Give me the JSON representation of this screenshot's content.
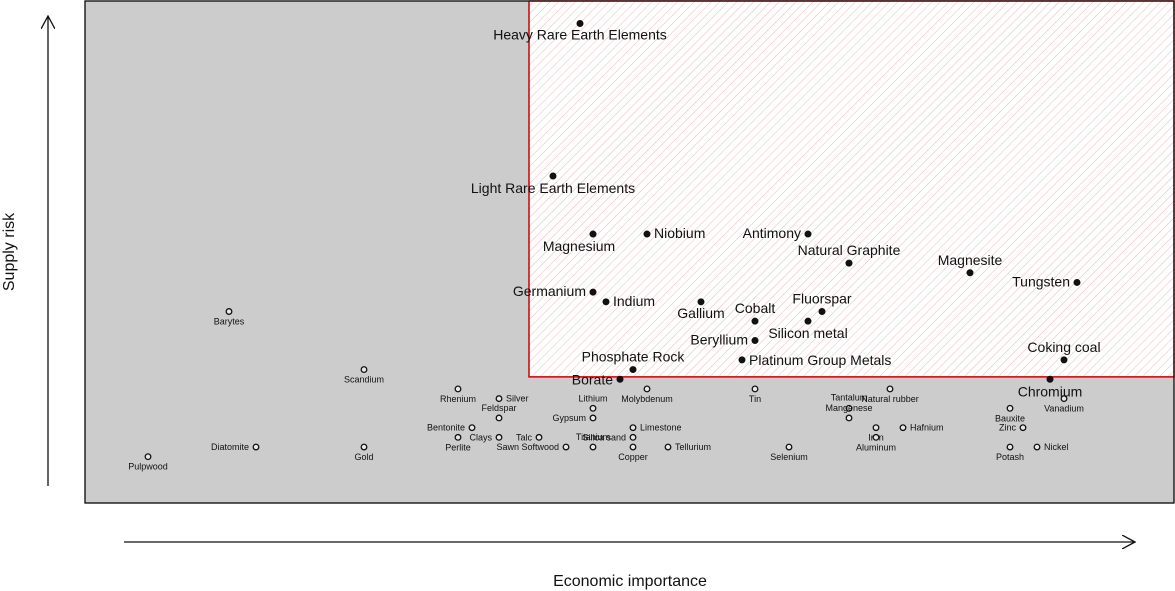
{
  "chart_data": {
    "type": "scatter",
    "title": "",
    "xlabel": "Economic importance",
    "ylabel": "Supply risk",
    "xlim": [
      0,
      100
    ],
    "ylim": [
      0,
      100
    ],
    "critical_region": {
      "x_min": 41.7,
      "y_min": 24.0
    },
    "colors": {
      "background": "#cccccc",
      "critical_fill": "#ffffff",
      "critical_border": "#cc0000",
      "hatch": "#e8b8b8",
      "point": "#111111"
    },
    "critical_points": [
      {
        "name": "Heavy Rare Earth Elements",
        "x": 46.8,
        "y": 97.0
      },
      {
        "name": "Light Rare Earth Elements",
        "x": 44.1,
        "y": 65.5
      },
      {
        "name": "Magnesium",
        "x": 48.1,
        "y": 53.5
      },
      {
        "name": "Niobium",
        "x": 53.5,
        "y": 53.5
      },
      {
        "name": "Antimony",
        "x": 69.6,
        "y": 53.5
      },
      {
        "name": "Natural Graphite",
        "x": 73.7,
        "y": 47.5
      },
      {
        "name": "Magnesite",
        "x": 85.8,
        "y": 45.5
      },
      {
        "name": "Tungsten",
        "x": 96.5,
        "y": 43.5
      },
      {
        "name": "Germanium",
        "x": 48.1,
        "y": 41.5
      },
      {
        "name": "Indium",
        "x": 49.4,
        "y": 39.5
      },
      {
        "name": "Gallium",
        "x": 58.9,
        "y": 39.5
      },
      {
        "name": "Fluorspar",
        "x": 71.0,
        "y": 37.5
      },
      {
        "name": "Cobalt",
        "x": 64.3,
        "y": 35.5
      },
      {
        "name": "Silicon metal",
        "x": 69.6,
        "y": 35.5
      },
      {
        "name": "Beryllium",
        "x": 64.3,
        "y": 31.5
      },
      {
        "name": "Platinum Group Metals",
        "x": 63.0,
        "y": 27.5
      },
      {
        "name": "Coking coal",
        "x": 95.2,
        "y": 27.5
      },
      {
        "name": "Phosphate Rock",
        "x": 52.1,
        "y": 25.5
      },
      {
        "name": "Borate",
        "x": 50.8,
        "y": 23.5
      },
      {
        "name": "Chromium",
        "x": 93.8,
        "y": 23.5
      }
    ],
    "noncritical_points": [
      {
        "name": "Barytes",
        "x": 11.7,
        "y": 37.5
      },
      {
        "name": "Scandium",
        "x": 25.2,
        "y": 25.5
      },
      {
        "name": "Rhenium",
        "x": 34.6,
        "y": 21.5
      },
      {
        "name": "Molybdenum",
        "x": 53.5,
        "y": 21.5
      },
      {
        "name": "Tin",
        "x": 64.3,
        "y": 21.5
      },
      {
        "name": "Natural rubber",
        "x": 77.8,
        "y": 21.5
      },
      {
        "name": "Silver",
        "x": 38.7,
        "y": 19.5
      },
      {
        "name": "Vanadium",
        "x": 95.2,
        "y": 19.5
      },
      {
        "name": "Lithium",
        "x": 48.1,
        "y": 17.5
      },
      {
        "name": "Tantalum",
        "x": 73.7,
        "y": 17.5
      },
      {
        "name": "Bauxite",
        "x": 89.8,
        "y": 17.5
      },
      {
        "name": "Feldspar",
        "x": 38.7,
        "y": 15.5
      },
      {
        "name": "Gypsum",
        "x": 48.1,
        "y": 15.5
      },
      {
        "name": "Mangenese",
        "x": 73.7,
        "y": 15.5
      },
      {
        "name": "Bentonite",
        "x": 36.0,
        "y": 13.5
      },
      {
        "name": "Limestone",
        "x": 52.1,
        "y": 13.5
      },
      {
        "name": "Iron",
        "x": 76.4,
        "y": 13.5
      },
      {
        "name": "Hafnium",
        "x": 79.1,
        "y": 13.5
      },
      {
        "name": "Zinc",
        "x": 91.1,
        "y": 13.5
      },
      {
        "name": "Perlite",
        "x": 34.6,
        "y": 11.5
      },
      {
        "name": "Clays",
        "x": 38.7,
        "y": 11.5
      },
      {
        "name": "Talc",
        "x": 42.7,
        "y": 11.5
      },
      {
        "name": "Silica sand",
        "x": 52.1,
        "y": 11.5
      },
      {
        "name": "Aluminum",
        "x": 76.4,
        "y": 11.5
      },
      {
        "name": "Diatomite",
        "x": 14.4,
        "y": 9.5
      },
      {
        "name": "Gold",
        "x": 25.2,
        "y": 9.5
      },
      {
        "name": "Sawn Softwood",
        "x": 45.4,
        "y": 9.5
      },
      {
        "name": "Titanium",
        "x": 48.1,
        "y": 9.5
      },
      {
        "name": "Copper",
        "x": 52.1,
        "y": 9.5
      },
      {
        "name": "Tellurium",
        "x": 55.6,
        "y": 9.5
      },
      {
        "name": "Selenium",
        "x": 67.7,
        "y": 9.5
      },
      {
        "name": "Potash",
        "x": 89.8,
        "y": 9.5
      },
      {
        "name": "Nickel",
        "x": 92.5,
        "y": 9.5
      },
      {
        "name": "Pulpwood",
        "x": 3.6,
        "y": 7.5
      }
    ]
  }
}
